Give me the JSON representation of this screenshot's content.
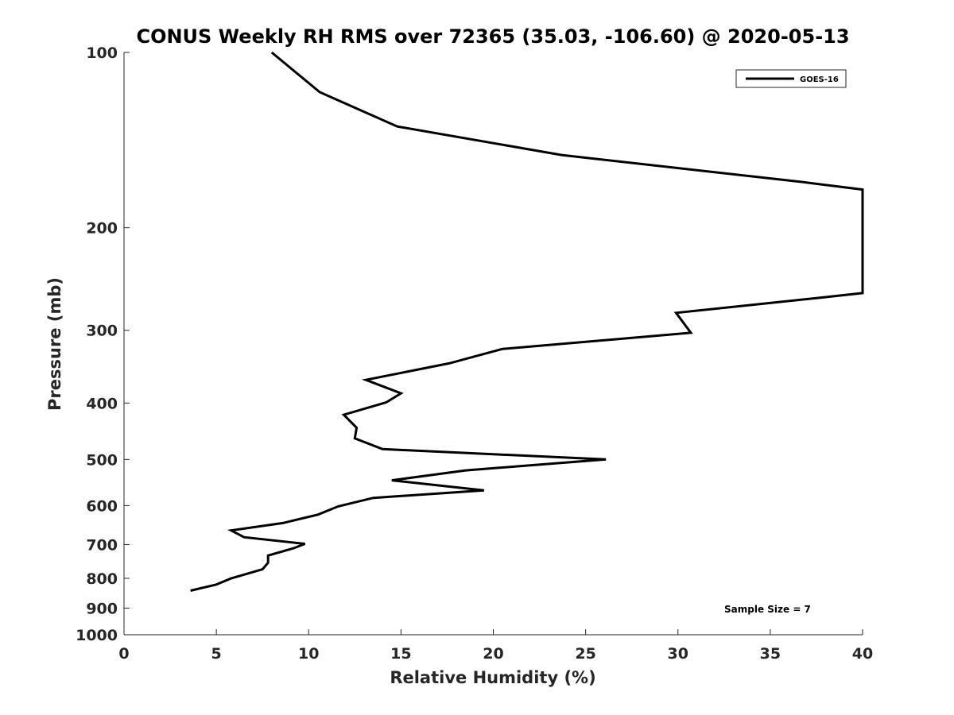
{
  "chart_data": {
    "type": "line",
    "title": "CONUS Weekly RH RMS over 72365 (35.03, -106.60) @ 2020-05-13",
    "xlabel": "Relative Humidity (%)",
    "ylabel": "Pressure (mb)",
    "xlim": [
      0,
      40
    ],
    "ylim": [
      100,
      1000
    ],
    "yscale": "log",
    "yreversed": true,
    "xticks": [
      0,
      5,
      10,
      15,
      20,
      25,
      30,
      35,
      40
    ],
    "yticks": [
      100,
      200,
      300,
      400,
      500,
      600,
      700,
      800,
      900,
      1000
    ],
    "grid": false,
    "legend_position": "top-right",
    "annotation": "Sample Size = 7",
    "series": [
      {
        "name": "GOES-16",
        "color": "#000000",
        "x": [
          8.0,
          10.6,
          14.8,
          23.7,
          36.8,
          40.0,
          40.0,
          37.6,
          29.9,
          30.7,
          20.5,
          17.6,
          13.1,
          15.0,
          14.2,
          11.9,
          12.6,
          12.5,
          14.0,
          26.1,
          18.5,
          14.5,
          19.5,
          13.5,
          11.6,
          10.5,
          8.6,
          5.8,
          6.5,
          9.8,
          9.2,
          7.8,
          7.8,
          7.5,
          5.8,
          5.0,
          3.6
        ],
        "y": [
          100,
          117,
          134,
          150,
          167,
          172,
          259,
          264,
          280,
          303,
          323,
          342,
          365,
          385,
          399,
          419,
          441,
          460,
          480,
          500,
          522,
          543,
          565,
          582,
          602,
          622,
          643,
          662,
          680,
          698,
          710,
          731,
          752,
          772,
          800,
          820,
          840
        ]
      }
    ]
  }
}
